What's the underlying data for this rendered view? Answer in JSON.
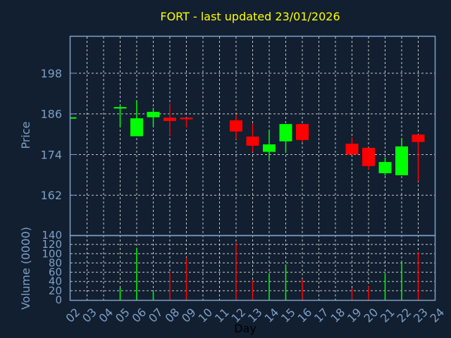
{
  "chart_data": {
    "type": "candlestick",
    "title": "FORT - last updated 23/01/2026",
    "xlabel": "Day",
    "ylabel": "Price",
    "volume_label": "Volume (0000)",
    "x_ticks": [
      "02",
      "03",
      "04",
      "05",
      "06",
      "07",
      "08",
      "09",
      "10",
      "11",
      "12",
      "13",
      "14",
      "15",
      "16",
      "17",
      "18",
      "19",
      "20",
      "21",
      "22",
      "23",
      "24"
    ],
    "price_ticks": [
      198,
      186,
      174,
      162
    ],
    "volume_ticks": [
      0,
      20,
      40,
      60,
      80,
      100,
      120,
      140
    ],
    "price_ylim": [
      150.2,
      208.8
    ],
    "volume_ylim": [
      0,
      140
    ],
    "grid": true,
    "colors": {
      "up": "#00ff00",
      "down": "#ff0000",
      "title": "#ffff00",
      "axis": "#7f9fc8",
      "background": "#111f30"
    },
    "candles": [
      {
        "day": 2,
        "open": 185.0,
        "high": 185.0,
        "low": 185.0,
        "close": 185.0,
        "volume": 0
      },
      {
        "day": 5,
        "open": 187.9,
        "high": 188.4,
        "low": 182.2,
        "close": 188.0,
        "volume": 26
      },
      {
        "day": 6,
        "open": 179.4,
        "high": 189.9,
        "low": 179.4,
        "close": 184.7,
        "volume": 113
      },
      {
        "day": 7,
        "open": 185.0,
        "high": 187.8,
        "low": 182.2,
        "close": 186.6,
        "volume": 20
      },
      {
        "day": 8,
        "open": 184.9,
        "high": 189.1,
        "low": 179.6,
        "close": 183.9,
        "volume": 60
      },
      {
        "day": 9,
        "open": 184.9,
        "high": 184.9,
        "low": 182.0,
        "close": 184.4,
        "volume": 91
      },
      {
        "day": 12,
        "open": 184.1,
        "high": 185.9,
        "low": 178.5,
        "close": 180.8,
        "volume": 124
      },
      {
        "day": 13,
        "open": 179.3,
        "high": 183.1,
        "low": 174.8,
        "close": 176.6,
        "volume": 43
      },
      {
        "day": 14,
        "open": 174.8,
        "high": 181.0,
        "low": 172.7,
        "close": 177.0,
        "volume": 57
      },
      {
        "day": 15,
        "open": 177.9,
        "high": 183.0,
        "low": 174.8,
        "close": 183.0,
        "volume": 77
      },
      {
        "day": 16,
        "open": 183.0,
        "high": 183.0,
        "low": 177.7,
        "close": 178.3,
        "volume": 45
      },
      {
        "day": 19,
        "open": 177.2,
        "high": 179.1,
        "low": 174.0,
        "close": 174.0,
        "volume": 26
      },
      {
        "day": 20,
        "open": 176.0,
        "high": 176.0,
        "low": 169.6,
        "close": 170.6,
        "volume": 30
      },
      {
        "day": 21,
        "open": 168.5,
        "high": 173.1,
        "low": 167.8,
        "close": 171.8,
        "volume": 58
      },
      {
        "day": 22,
        "open": 167.9,
        "high": 178.9,
        "low": 167.9,
        "close": 176.4,
        "volume": 83
      },
      {
        "day": 23,
        "open": 179.9,
        "high": 179.9,
        "low": 166.1,
        "close": 177.7,
        "volume": 104
      }
    ]
  }
}
